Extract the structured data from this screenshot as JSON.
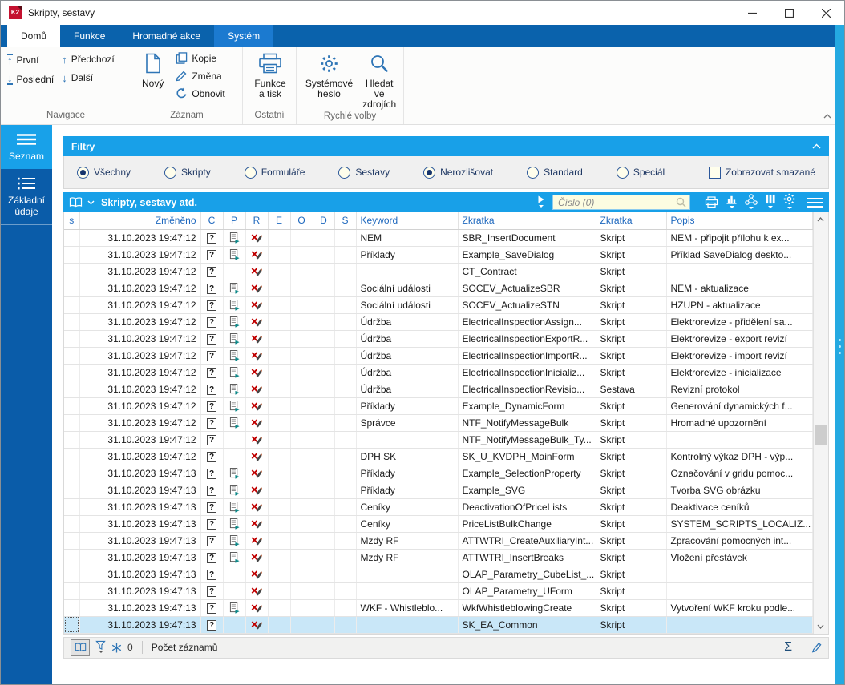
{
  "window": {
    "title": "Skripty, sestavy"
  },
  "tabs": [
    {
      "label": "Domů",
      "state": "active"
    },
    {
      "label": "Funkce",
      "state": "normal"
    },
    {
      "label": "Hromadné akce",
      "state": "normal"
    },
    {
      "label": "Systém",
      "state": "highlighted"
    }
  ],
  "ribbon": {
    "groups": [
      {
        "label": "Navigace",
        "buttons": [
          {
            "label": "První",
            "icon": "arrow-up-bar"
          },
          {
            "label": "Poslední",
            "icon": "arrow-down-bar"
          },
          {
            "label": "Předchozí",
            "icon": "arrow-up"
          },
          {
            "label": "Další",
            "icon": "arrow-down"
          }
        ]
      },
      {
        "label": "Záznam",
        "buttons": [
          {
            "label": "Nový",
            "icon": "new-document"
          },
          {
            "label": "Kopie",
            "icon": "copy"
          },
          {
            "label": "Změna",
            "icon": "pencil"
          },
          {
            "label": "Obnovit",
            "icon": "refresh"
          }
        ]
      },
      {
        "label": "Ostatní",
        "buttons": [
          {
            "label": "Funkce a tisk",
            "icon": "printer"
          }
        ]
      },
      {
        "label": "Rychlé volby",
        "buttons": [
          {
            "label": "Systémové heslo",
            "icon": "gear"
          },
          {
            "label": "Hledat ve zdrojích",
            "icon": "magnifier"
          }
        ]
      }
    ]
  },
  "sidebar": {
    "items": [
      {
        "label": "Seznam",
        "icon": "menu",
        "active": true
      },
      {
        "label": "Základní údaje",
        "icon": "list",
        "active": false
      }
    ]
  },
  "filters": {
    "title": "Filtry",
    "options": [
      {
        "label": "Všechny",
        "selected": true
      },
      {
        "label": "Skripty",
        "selected": false
      },
      {
        "label": "Formuláře",
        "selected": false
      },
      {
        "label": "Sestavy",
        "selected": false
      },
      {
        "label": "Nerozlišovat",
        "selected": true
      },
      {
        "label": "Standard",
        "selected": false
      },
      {
        "label": "Speciál",
        "selected": false
      }
    ],
    "checkbox": {
      "label": "Zobrazovat smazané",
      "checked": false
    }
  },
  "grid": {
    "title": "Skripty, sestavy atd.",
    "search": {
      "placeholder": "Číslo (0)"
    },
    "columns": [
      "s",
      "Změněno",
      "C",
      "P",
      "R",
      "E",
      "O",
      "D",
      "S",
      "Keyword",
      "Zkratka",
      "Zkratka",
      "Popis"
    ],
    "rows": [
      {
        "changed": "31.10.2023 19:47:12",
        "p": true,
        "keyword": "NEM",
        "abbr": "SBR_InsertDocument",
        "type": "Skript",
        "desc": "NEM - připojit přílohu k ex..."
      },
      {
        "changed": "31.10.2023 19:47:12",
        "p": true,
        "keyword": "Příklady",
        "abbr": "Example_SaveDialog",
        "type": "Skript",
        "desc": "Příklad SaveDialog deskto..."
      },
      {
        "changed": "31.10.2023 19:47:12",
        "p": false,
        "keyword": "",
        "abbr": "CT_Contract",
        "type": "Skript",
        "desc": ""
      },
      {
        "changed": "31.10.2023 19:47:12",
        "p": true,
        "keyword": "Sociální události",
        "abbr": "SOCEV_ActualizeSBR",
        "type": "Skript",
        "desc": "NEM - aktualizace"
      },
      {
        "changed": "31.10.2023 19:47:12",
        "p": true,
        "keyword": "Sociální události",
        "abbr": "SOCEV_ActualizeSTN",
        "type": "Skript",
        "desc": "HZUPN - aktualizace"
      },
      {
        "changed": "31.10.2023 19:47:12",
        "p": true,
        "keyword": "Údržba",
        "abbr": "ElectricalInspectionAssign...",
        "type": "Skript",
        "desc": "Elektrorevize - přidělení sa..."
      },
      {
        "changed": "31.10.2023 19:47:12",
        "p": true,
        "keyword": "Údržba",
        "abbr": "ElectricalInspectionExportR...",
        "type": "Skript",
        "desc": "Elektrorevize - export revizí"
      },
      {
        "changed": "31.10.2023 19:47:12",
        "p": true,
        "keyword": "Údržba",
        "abbr": "ElectricalInspectionImportR...",
        "type": "Skript",
        "desc": "Elektrorevize - import revizí"
      },
      {
        "changed": "31.10.2023 19:47:12",
        "p": true,
        "keyword": "Údržba",
        "abbr": "ElectricalInspectionInicializ...",
        "type": "Skript",
        "desc": "Elektrorevize - inicializace"
      },
      {
        "changed": "31.10.2023 19:47:12",
        "p": true,
        "keyword": "Údržba",
        "abbr": "ElectricalInspectionRevisio...",
        "type": "Sestava",
        "desc": "Revizní protokol"
      },
      {
        "changed": "31.10.2023 19:47:12",
        "p": true,
        "keyword": "Příklady",
        "abbr": "Example_DynamicForm",
        "type": "Skript",
        "desc": "Generování dynamických f..."
      },
      {
        "changed": "31.10.2023 19:47:12",
        "p": true,
        "keyword": "Správce",
        "abbr": "NTF_NotifyMessageBulk",
        "type": "Skript",
        "desc": "Hromadné upozornění"
      },
      {
        "changed": "31.10.2023 19:47:12",
        "p": false,
        "keyword": "",
        "abbr": "NTF_NotifyMessageBulk_Ty...",
        "type": "Skript",
        "desc": ""
      },
      {
        "changed": "31.10.2023 19:47:12",
        "p": false,
        "keyword": "DPH SK",
        "abbr": "SK_U_KVDPH_MainForm",
        "type": "Skript",
        "desc": "Kontrolný výkaz DPH - výp..."
      },
      {
        "changed": "31.10.2023 19:47:13",
        "p": true,
        "keyword": "Příklady",
        "abbr": "Example_SelectionProperty",
        "type": "Skript",
        "desc": "Označování v gridu pomoc..."
      },
      {
        "changed": "31.10.2023 19:47:13",
        "p": true,
        "keyword": "Příklady",
        "abbr": "Example_SVG",
        "type": "Skript",
        "desc": "Tvorba SVG obrázku"
      },
      {
        "changed": "31.10.2023 19:47:13",
        "p": true,
        "keyword": "Ceníky",
        "abbr": "DeactivationOfPriceLists",
        "type": "Skript",
        "desc": "Deaktivace ceníků"
      },
      {
        "changed": "31.10.2023 19:47:13",
        "p": true,
        "keyword": "Ceníky",
        "abbr": "PriceListBulkChange",
        "type": "Skript",
        "desc": "SYSTEM_SCRIPTS_LOCALIZ..."
      },
      {
        "changed": "31.10.2023 19:47:13",
        "p": true,
        "keyword": "Mzdy RF",
        "abbr": "ATTWTRI_CreateAuxiliaryInt...",
        "type": "Skript",
        "desc": "Zpracování pomocných int..."
      },
      {
        "changed": "31.10.2023 19:47:13",
        "p": true,
        "keyword": "Mzdy RF",
        "abbr": "ATTWTRI_InsertBreaks",
        "type": "Skript",
        "desc": "Vložení přestávek"
      },
      {
        "changed": "31.10.2023 19:47:13",
        "p": false,
        "keyword": "",
        "abbr": "OLAP_Parametry_CubeList_...",
        "type": "Skript",
        "desc": ""
      },
      {
        "changed": "31.10.2023 19:47:13",
        "p": false,
        "keyword": "",
        "abbr": "OLAP_Parametry_UForm",
        "type": "Skript",
        "desc": ""
      },
      {
        "changed": "31.10.2023 19:47:13",
        "p": true,
        "keyword": "WKF - Whistleblo...",
        "abbr": "WkfWhistleblowingCreate",
        "type": "Skript",
        "desc": "Vytvoření WKF kroku podle..."
      },
      {
        "changed": "31.10.2023 19:47:13",
        "p": false,
        "keyword": "",
        "abbr": "SK_EA_Common",
        "type": "Skript",
        "desc": "",
        "selected": true
      }
    ]
  },
  "statusbar": {
    "frozen_count": "0",
    "record_count_label": "Počet záznamů"
  },
  "colors": {
    "accent_blue": "#18a0e8",
    "tabstrip_blue": "#0a62ac",
    "highlight_tab_blue": "#1b7ad0",
    "sidebar_blue": "#0a5ca9",
    "icon_blue": "#2e75b6",
    "selected_row": "#c9e7f8",
    "search_bg": "#fcfce1",
    "logo_red": "#c41230",
    "header_text_blue": "#1e68be",
    "doc_arrow_teal": "#0e8a8a",
    "crossed_red": "#c00000"
  }
}
